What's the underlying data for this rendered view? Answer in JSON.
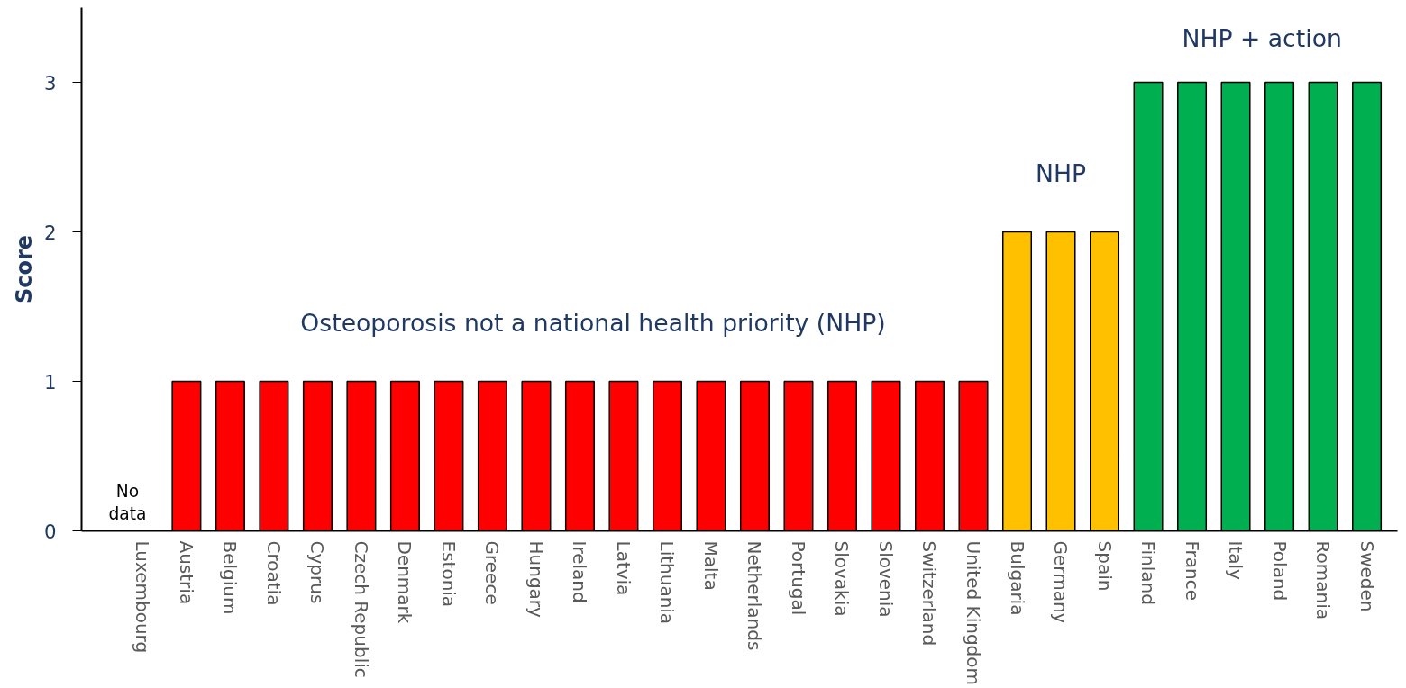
{
  "chart_data": {
    "type": "bar",
    "ylabel": "Score",
    "categories": [
      "Luxembourg",
      "Austria",
      "Belgium",
      "Croatia",
      "Cyprus",
      "Czech Republic",
      "Denmark",
      "Estonia",
      "Greece",
      "Hungary",
      "Ireland",
      "Latvia",
      "Lithuania",
      "Malta",
      "Netherlands",
      "Portugal",
      "Slovakia",
      "Slovenia",
      "Switzerland",
      "United Kingdom",
      "Bulgaria",
      "Germany",
      "Spain",
      "Finland",
      "France",
      "Italy",
      "Poland",
      "Romania",
      "Sweden"
    ],
    "values": [
      null,
      1,
      1,
      1,
      1,
      1,
      1,
      1,
      1,
      1,
      1,
      1,
      1,
      1,
      1,
      1,
      1,
      1,
      1,
      1,
      2,
      2,
      2,
      3,
      3,
      3,
      3,
      3,
      3
    ],
    "colors": [
      "#ff0000",
      "#ff0000",
      "#ff0000",
      "#ff0000",
      "#ff0000",
      "#ff0000",
      "#ff0000",
      "#ff0000",
      "#ff0000",
      "#ff0000",
      "#ff0000",
      "#ff0000",
      "#ff0000",
      "#ff0000",
      "#ff0000",
      "#ff0000",
      "#ff0000",
      "#ff0000",
      "#ff0000",
      "#ff0000",
      "#ffc000",
      "#ffc000",
      "#ffc000",
      "#00b050",
      "#00b050",
      "#00b050",
      "#00b050",
      "#00b050",
      "#00b050"
    ],
    "ylim": [
      0,
      3.5
    ],
    "yticks": [
      0,
      1,
      2,
      3
    ],
    "annotations": [
      "No data",
      "Osteoporosis not a national health priority (NHP)",
      "NHP",
      "NHP + action"
    ]
  }
}
